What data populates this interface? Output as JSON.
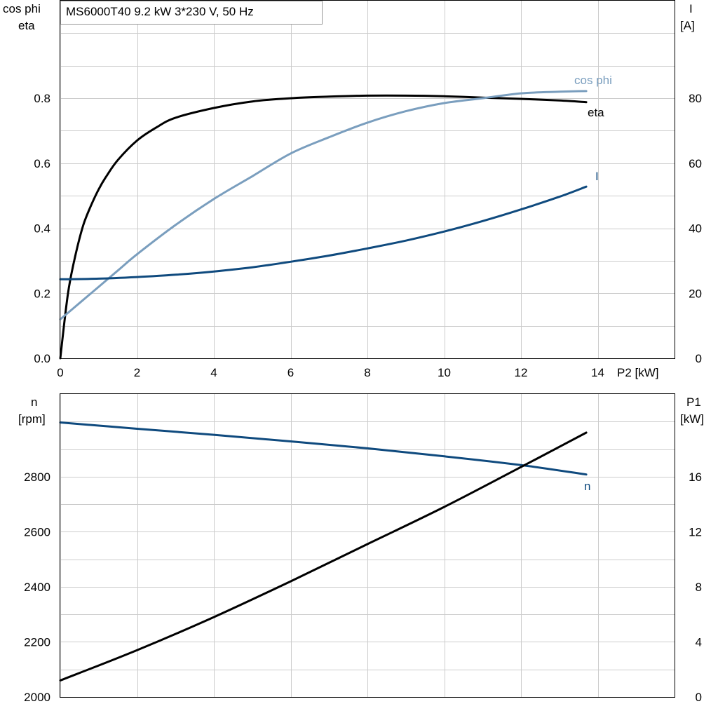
{
  "chart_data": [
    {
      "type": "line",
      "title": "MS6000T40   9.2 kW   3*230 V, 50 Hz",
      "xlabel": "P2 [kW]",
      "xlim": [
        0,
        16
      ],
      "xticks": [
        0,
        2,
        4,
        6,
        8,
        10,
        12,
        14
      ],
      "y_left": {
        "label_lines": [
          "cos phi",
          "eta"
        ],
        "lim": [
          0,
          1.1
        ],
        "ticks": [
          0.0,
          0.2,
          0.4,
          0.6,
          0.8
        ],
        "tick_labels": [
          "0.0",
          "0.2",
          "0.4",
          "0.6",
          "0.8"
        ]
      },
      "y_right": {
        "label_lines": [
          "I",
          "[A]"
        ],
        "lim": [
          0,
          110
        ],
        "ticks": [
          0,
          20,
          40,
          60,
          80
        ],
        "tick_labels": [
          "0",
          "20",
          "40",
          "60",
          "80"
        ]
      },
      "grid": true,
      "series": [
        {
          "name": "eta",
          "axis": "left",
          "color": "#000000",
          "x": [
            0,
            0.2,
            0.4,
            0.6,
            0.8,
            1.0,
            1.2,
            1.5,
            2.0,
            2.5,
            3.0,
            4.0,
            5.0,
            6.0,
            7.0,
            8.0,
            9.0,
            10.0,
            11.0,
            12.0,
            13.0,
            13.7
          ],
          "y": [
            0.0,
            0.2,
            0.32,
            0.41,
            0.47,
            0.52,
            0.56,
            0.61,
            0.67,
            0.71,
            0.74,
            0.77,
            0.79,
            0.8,
            0.805,
            0.808,
            0.808,
            0.806,
            0.802,
            0.798,
            0.793,
            0.788
          ]
        },
        {
          "name": "cos phi",
          "axis": "left",
          "color": "#7a9ebe",
          "x": [
            0,
            0.5,
            1.0,
            1.5,
            2.0,
            3.0,
            4.0,
            5.0,
            6.0,
            7.0,
            8.0,
            9.0,
            10.0,
            11.0,
            12.0,
            13.0,
            13.7
          ],
          "y": [
            0.12,
            0.17,
            0.22,
            0.27,
            0.32,
            0.41,
            0.49,
            0.56,
            0.63,
            0.68,
            0.725,
            0.76,
            0.785,
            0.8,
            0.815,
            0.82,
            0.822
          ]
        },
        {
          "name": "I",
          "axis": "right",
          "color": "#0f4a7e",
          "x": [
            0,
            1,
            2,
            3,
            4,
            5,
            6,
            7,
            8,
            9,
            10,
            11,
            12,
            13,
            13.7
          ],
          "y": [
            24.3,
            24.5,
            25.0,
            25.7,
            26.7,
            28.0,
            29.7,
            31.6,
            33.8,
            36.2,
            39.0,
            42.2,
            45.8,
            49.7,
            52.8
          ]
        }
      ]
    },
    {
      "type": "line",
      "xlim": [
        0,
        16
      ],
      "xticks": [
        0,
        2,
        4,
        6,
        8,
        10,
        12,
        14
      ],
      "y_left": {
        "label_lines": [
          "n",
          "[rpm]"
        ],
        "lim": [
          2000,
          3100
        ],
        "ticks": [
          2000,
          2200,
          2400,
          2600,
          2800
        ],
        "tick_labels": [
          "2000",
          "2200",
          "2400",
          "2600",
          "2800"
        ]
      },
      "y_right": {
        "label_lines": [
          "P1",
          "[kW]"
        ],
        "lim": [
          0,
          22
        ],
        "ticks": [
          0,
          4,
          8,
          12,
          16
        ],
        "tick_labels": [
          "0",
          "4",
          "8",
          "12",
          "16"
        ]
      },
      "grid": true,
      "series": [
        {
          "name": "n",
          "axis": "left",
          "color": "#0f4a7e",
          "x": [
            0,
            2,
            4,
            6,
            8,
            10,
            12,
            13.7
          ],
          "y": [
            2997,
            2974,
            2952,
            2928,
            2903,
            2874,
            2842,
            2808
          ]
        },
        {
          "name": "",
          "axis": "right",
          "color": "#000000",
          "x": [
            0,
            2,
            4,
            6,
            8,
            10,
            12,
            13.7
          ],
          "y": [
            1.2,
            3.4,
            5.8,
            8.4,
            11.1,
            13.8,
            16.7,
            19.2
          ]
        }
      ]
    }
  ]
}
